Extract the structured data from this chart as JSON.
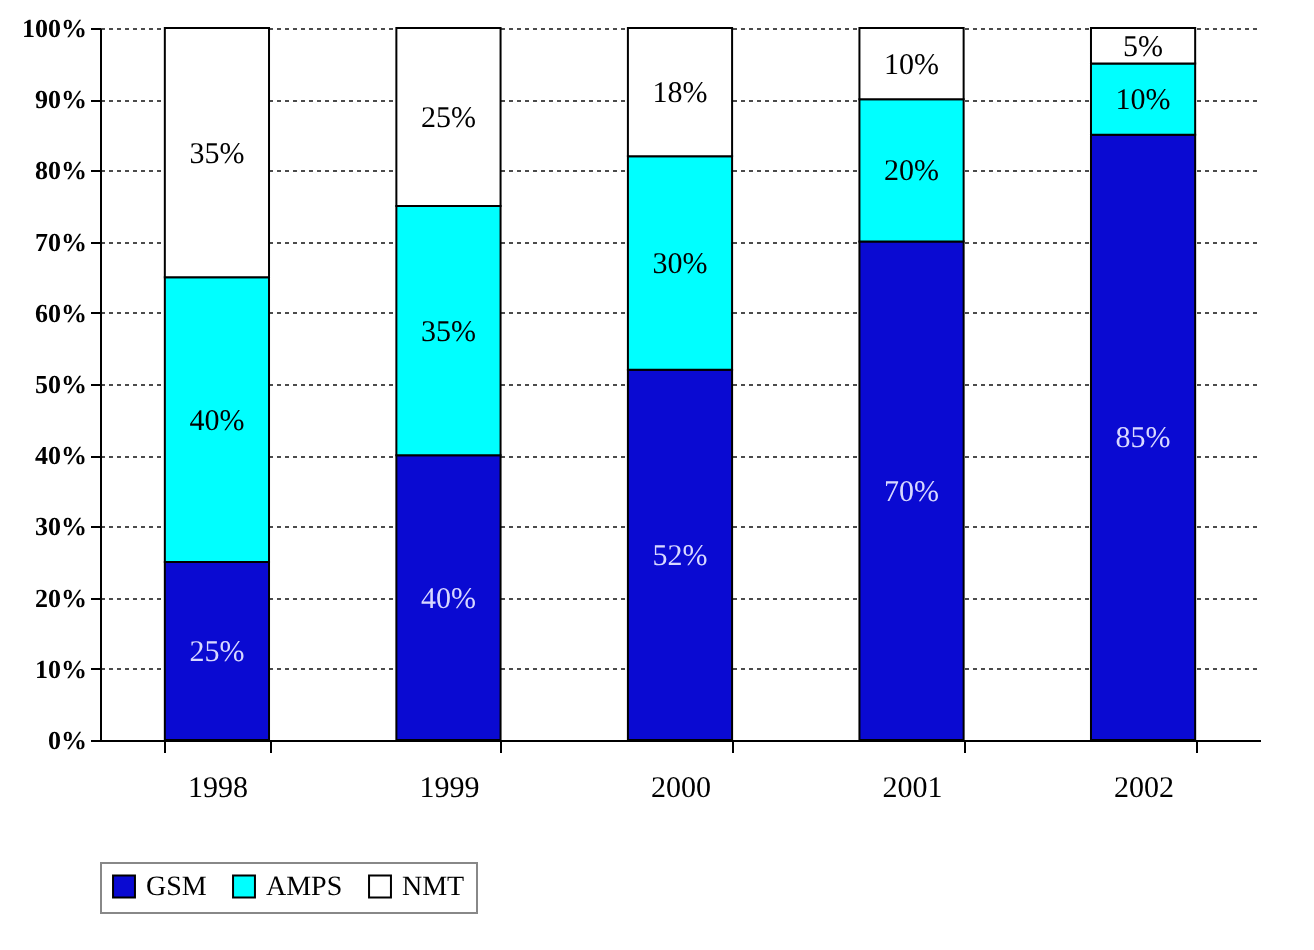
{
  "chart_data": {
    "type": "bar",
    "stacked": true,
    "categories": [
      "1998",
      "1999",
      "2000",
      "2001",
      "2002"
    ],
    "series": [
      {
        "name": "GSM",
        "color": "#0a0ad2",
        "values": [
          25,
          40,
          52,
          70,
          85
        ],
        "value_labels": [
          "25%",
          "40%",
          "52%",
          "70%",
          "85%"
        ]
      },
      {
        "name": "AMPS",
        "color": "#00ffff",
        "values": [
          40,
          35,
          30,
          20,
          10
        ],
        "value_labels": [
          "40%",
          "35%",
          "30%",
          "20%",
          "10%"
        ]
      },
      {
        "name": "NMT",
        "color": "#ffffff",
        "values": [
          35,
          25,
          18,
          10,
          5
        ],
        "value_labels": [
          "35%",
          "25%",
          "18%",
          "10%",
          "5%"
        ]
      }
    ],
    "ylim": [
      0,
      100
    ],
    "yticks": [
      {
        "value": 0,
        "label": "0%"
      },
      {
        "value": 10,
        "label": "10%"
      },
      {
        "value": 20,
        "label": "20%"
      },
      {
        "value": 30,
        "label": "30%"
      },
      {
        "value": 40,
        "label": "40%"
      },
      {
        "value": 50,
        "label": "50%"
      },
      {
        "value": 60,
        "label": "60%"
      },
      {
        "value": 70,
        "label": "70%"
      },
      {
        "value": 80,
        "label": "80%"
      },
      {
        "value": 90,
        "label": "90%"
      },
      {
        "value": 100,
        "label": "100%"
      }
    ],
    "grid": "y",
    "legend": "bottom"
  }
}
